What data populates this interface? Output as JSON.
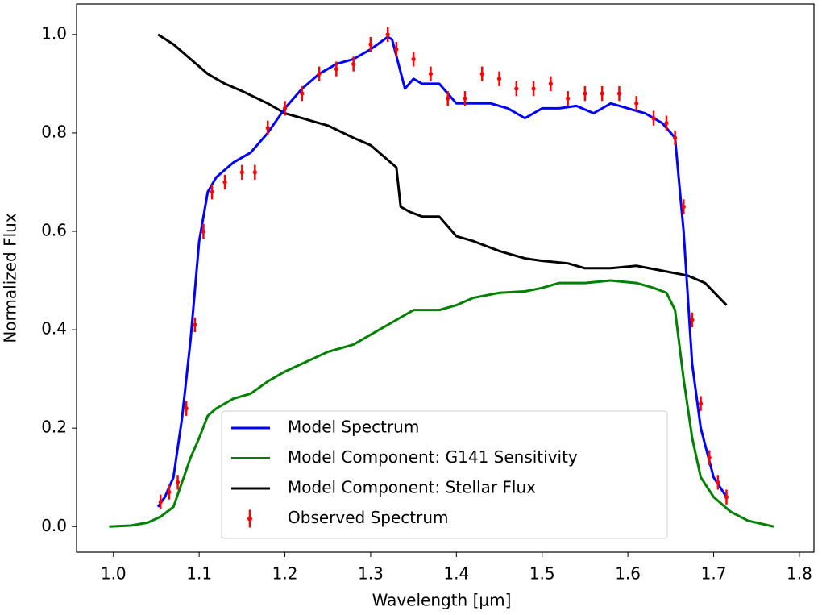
{
  "chart_data": {
    "type": "line",
    "xlabel": "Wavelength [μm]",
    "ylabel": "Normalized Flux",
    "xlim": [
      0.957,
      1.817
    ],
    "ylim": [
      -0.052,
      1.062
    ],
    "xticks": [
      {
        "value": 1.0,
        "label": "1.0"
      },
      1.1,
      1.2,
      1.3,
      1.4,
      1.5,
      1.6,
      1.7,
      {
        "value": 1.8,
        "label": "1.8"
      }
    ],
    "yticks": [
      {
        "value": 0.0,
        "label": "0.0"
      },
      0.2,
      0.4,
      0.6,
      0.8,
      {
        "value": 1.0,
        "label": "1.0"
      }
    ],
    "legend": "lower center",
    "series": [
      {
        "name": "Model Spectrum",
        "color": "#0000ff",
        "style": "line",
        "x": [
          1.052,
          1.06,
          1.07,
          1.08,
          1.09,
          1.1,
          1.11,
          1.12,
          1.14,
          1.16,
          1.18,
          1.2,
          1.22,
          1.24,
          1.26,
          1.28,
          1.3,
          1.32,
          1.325,
          1.34,
          1.35,
          1.36,
          1.38,
          1.4,
          1.42,
          1.44,
          1.46,
          1.48,
          1.5,
          1.52,
          1.54,
          1.56,
          1.58,
          1.6,
          1.62,
          1.64,
          1.655,
          1.665,
          1.675,
          1.685,
          1.7,
          1.715
        ],
        "values": [
          0.04,
          0.06,
          0.1,
          0.22,
          0.38,
          0.58,
          0.68,
          0.71,
          0.74,
          0.76,
          0.8,
          0.85,
          0.89,
          0.92,
          0.94,
          0.95,
          0.97,
          0.995,
          0.99,
          0.89,
          0.91,
          0.9,
          0.9,
          0.86,
          0.86,
          0.86,
          0.85,
          0.83,
          0.85,
          0.85,
          0.855,
          0.84,
          0.86,
          0.85,
          0.84,
          0.82,
          0.79,
          0.6,
          0.33,
          0.2,
          0.1,
          0.06
        ]
      },
      {
        "name": "Model Component: G141 Sensitivity",
        "color": "#008000",
        "style": "line",
        "x": [
          0.995,
          1.02,
          1.04,
          1.055,
          1.07,
          1.08,
          1.09,
          1.1,
          1.11,
          1.12,
          1.14,
          1.16,
          1.18,
          1.2,
          1.25,
          1.28,
          1.3,
          1.32,
          1.35,
          1.38,
          1.4,
          1.42,
          1.45,
          1.48,
          1.5,
          1.52,
          1.55,
          1.58,
          1.61,
          1.63,
          1.645,
          1.655,
          1.665,
          1.675,
          1.685,
          1.7,
          1.72,
          1.74,
          1.77
        ],
        "values": [
          0.0,
          0.002,
          0.008,
          0.02,
          0.04,
          0.09,
          0.14,
          0.18,
          0.225,
          0.24,
          0.26,
          0.27,
          0.295,
          0.315,
          0.355,
          0.37,
          0.39,
          0.41,
          0.44,
          0.44,
          0.45,
          0.465,
          0.475,
          0.478,
          0.485,
          0.495,
          0.495,
          0.5,
          0.495,
          0.485,
          0.475,
          0.44,
          0.3,
          0.18,
          0.1,
          0.06,
          0.03,
          0.012,
          0.0
        ]
      },
      {
        "name": "Model Component: Stellar Flux",
        "color": "#000000",
        "style": "line",
        "x": [
          1.052,
          1.07,
          1.09,
          1.11,
          1.13,
          1.15,
          1.18,
          1.2,
          1.22,
          1.25,
          1.28,
          1.3,
          1.32,
          1.33,
          1.335,
          1.345,
          1.36,
          1.38,
          1.4,
          1.42,
          1.45,
          1.48,
          1.5,
          1.53,
          1.55,
          1.58,
          1.61,
          1.64,
          1.67,
          1.69,
          1.715
        ],
        "values": [
          1.0,
          0.98,
          0.95,
          0.92,
          0.9,
          0.885,
          0.86,
          0.84,
          0.83,
          0.815,
          0.79,
          0.775,
          0.745,
          0.73,
          0.65,
          0.64,
          0.63,
          0.63,
          0.59,
          0.58,
          0.56,
          0.545,
          0.54,
          0.535,
          0.525,
          0.525,
          0.53,
          0.52,
          0.51,
          0.495,
          0.45
        ]
      },
      {
        "name": "Observed Spectrum",
        "color": "#ff0000",
        "style": "errorbar",
        "x": [
          1.055,
          1.065,
          1.075,
          1.085,
          1.095,
          1.105,
          1.115,
          1.13,
          1.15,
          1.165,
          1.18,
          1.2,
          1.22,
          1.24,
          1.26,
          1.28,
          1.3,
          1.32,
          1.33,
          1.35,
          1.37,
          1.39,
          1.41,
          1.43,
          1.45,
          1.47,
          1.49,
          1.51,
          1.53,
          1.55,
          1.57,
          1.59,
          1.61,
          1.63,
          1.645,
          1.655,
          1.665,
          1.675,
          1.685,
          1.695,
          1.705,
          1.715
        ],
        "values": [
          0.05,
          0.07,
          0.09,
          0.24,
          0.41,
          0.6,
          0.68,
          0.7,
          0.72,
          0.72,
          0.81,
          0.85,
          0.88,
          0.92,
          0.93,
          0.94,
          0.98,
          1.0,
          0.97,
          0.95,
          0.92,
          0.87,
          0.87,
          0.92,
          0.91,
          0.89,
          0.89,
          0.9,
          0.87,
          0.88,
          0.88,
          0.88,
          0.86,
          0.83,
          0.82,
          0.79,
          0.65,
          0.42,
          0.25,
          0.14,
          0.09,
          0.06
        ],
        "errors": [
          0.015,
          0.015,
          0.015,
          0.015,
          0.015,
          0.015,
          0.015,
          0.015,
          0.015,
          0.015,
          0.015,
          0.015,
          0.015,
          0.015,
          0.015,
          0.015,
          0.015,
          0.015,
          0.015,
          0.015,
          0.015,
          0.015,
          0.015,
          0.015,
          0.015,
          0.015,
          0.015,
          0.015,
          0.015,
          0.015,
          0.015,
          0.015,
          0.015,
          0.015,
          0.015,
          0.015,
          0.015,
          0.015,
          0.015,
          0.015,
          0.015,
          0.015
        ]
      }
    ]
  }
}
